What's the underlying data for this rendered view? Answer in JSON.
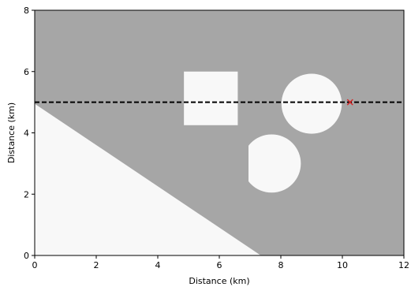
{
  "chart_data": {
    "type": "heatmap",
    "title": "",
    "xlabel": "Distance (km)",
    "ylabel": "Distance (km)",
    "xlim": [
      0,
      12
    ],
    "ylim": [
      0,
      8
    ],
    "xticks": [
      0,
      2,
      4,
      6,
      8,
      10,
      12
    ],
    "yticks": [
      0,
      2,
      4,
      6,
      8
    ],
    "grid": false,
    "background_color": "#a6a6a6",
    "inclusion_color": "#f8f8f8",
    "regions": [
      {
        "shape": "triangle",
        "vertices": [
          [
            0,
            0
          ],
          [
            0,
            4.95
          ],
          [
            7.35,
            0
          ]
        ]
      },
      {
        "shape": "rectangle",
        "x": [
          4.85,
          6.6
        ],
        "y": [
          4.25,
          6.0
        ]
      },
      {
        "shape": "circle",
        "center": [
          9.0,
          4.95
        ],
        "radius": 0.98
      },
      {
        "shape": "circle-clipped",
        "center": [
          7.7,
          3.0
        ],
        "radius": 0.95,
        "clip_x_min": 6.95
      }
    ],
    "dashed_line": {
      "y": 5.0,
      "x": [
        0,
        12
      ],
      "color": "#000000"
    },
    "marker": {
      "x": 10.25,
      "y": 5.0,
      "symbol": "x",
      "color": "#d62728"
    }
  }
}
